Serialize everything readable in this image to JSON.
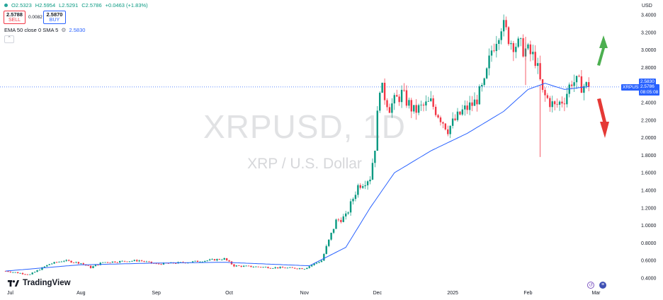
{
  "header": {
    "open": "O2.5323",
    "high": "H2.5954",
    "low": "L2.5291",
    "close": "C2.5786",
    "change": "+0.0463 (+1.83%)"
  },
  "trade": {
    "sell_price": "2.5788",
    "sell_label": "SELL",
    "spread": "0.0082",
    "buy_price": "2.5870",
    "buy_label": "BUY"
  },
  "indicator": {
    "label": "EMA 50 close 0 SMA 5",
    "value": "2.5830"
  },
  "watermark": {
    "symbol": "XRPUSD, 1D",
    "description": "XRP / U.S. Dollar"
  },
  "currency": "USD",
  "brand": "TradingView",
  "price_tags": {
    "symbol": "XRPUSD",
    "ema": "2.5830",
    "last": "2.5786",
    "countdown": "08:05:08"
  },
  "colors": {
    "up": "#089981",
    "down": "#f23645",
    "ema": "#2962ff",
    "arrow_up": "#4caf50",
    "arrow_down": "#e53935"
  },
  "chart_data": {
    "type": "candlestick",
    "title": "XRPUSD, 1D",
    "subtitle": "XRP / U.S. Dollar",
    "xlabel": "",
    "ylabel": "",
    "ylim": [
      0.35,
      3.45
    ],
    "y_ticks": [
      "3.4000",
      "3.2000",
      "3.0000",
      "2.8000",
      "2.6000",
      "2.4000",
      "2.2000",
      "2.0000",
      "1.8000",
      "1.6000",
      "1.4000",
      "1.2000",
      "1.0000",
      "0.8000",
      "0.6000",
      "0.4000"
    ],
    "y_tick_values": [
      3.4,
      3.2,
      3.0,
      2.8,
      2.6,
      2.4,
      2.2,
      2.0,
      1.8,
      1.6,
      1.4,
      1.2,
      1.0,
      0.8,
      0.6,
      0.4
    ],
    "x_ticks": [
      "Jul",
      "Aug",
      "Sep",
      "Oct",
      "Nov",
      "Dec",
      "2025",
      "Feb",
      "Mar"
    ],
    "x_tick_day_index": [
      0,
      31,
      62,
      92,
      123,
      153,
      184,
      215,
      243
    ],
    "days_total": 249,
    "grid": false,
    "last_price": 2.5786,
    "ema_last": 2.583,
    "anchors": [
      {
        "d": 0,
        "p": 0.48
      },
      {
        "d": 10,
        "p": 0.44
      },
      {
        "d": 18,
        "p": 0.56
      },
      {
        "d": 24,
        "p": 0.6
      },
      {
        "d": 31,
        "p": 0.57
      },
      {
        "d": 35,
        "p": 0.52
      },
      {
        "d": 40,
        "p": 0.58
      },
      {
        "d": 55,
        "p": 0.6
      },
      {
        "d": 62,
        "p": 0.56
      },
      {
        "d": 75,
        "p": 0.58
      },
      {
        "d": 90,
        "p": 0.62
      },
      {
        "d": 94,
        "p": 0.54
      },
      {
        "d": 110,
        "p": 0.52
      },
      {
        "d": 123,
        "p": 0.51
      },
      {
        "d": 130,
        "p": 0.6
      },
      {
        "d": 136,
        "p": 1.05
      },
      {
        "d": 140,
        "p": 1.1
      },
      {
        "d": 145,
        "p": 1.45
      },
      {
        "d": 150,
        "p": 1.55
      },
      {
        "d": 152,
        "p": 1.9
      },
      {
        "d": 154,
        "p": 2.6
      },
      {
        "d": 158,
        "p": 2.35
      },
      {
        "d": 163,
        "p": 2.5
      },
      {
        "d": 168,
        "p": 2.3
      },
      {
        "d": 175,
        "p": 2.4
      },
      {
        "d": 182,
        "p": 2.1
      },
      {
        "d": 188,
        "p": 2.3
      },
      {
        "d": 193,
        "p": 2.4
      },
      {
        "d": 197,
        "p": 2.6
      },
      {
        "d": 200,
        "p": 3.0
      },
      {
        "d": 204,
        "p": 3.3
      },
      {
        "d": 208,
        "p": 3.1
      },
      {
        "d": 214,
        "p": 3.0
      },
      {
        "d": 218,
        "p": 2.9
      },
      {
        "d": 221,
        "p": 2.5
      },
      {
        "d": 226,
        "p": 2.35
      },
      {
        "d": 230,
        "p": 2.45
      },
      {
        "d": 233,
        "p": 2.65
      },
      {
        "d": 237,
        "p": 2.6
      },
      {
        "d": 240,
        "p": 2.58
      }
    ],
    "ema_anchors": [
      {
        "d": 0,
        "p": 0.48
      },
      {
        "d": 30,
        "p": 0.55
      },
      {
        "d": 60,
        "p": 0.57
      },
      {
        "d": 90,
        "p": 0.58
      },
      {
        "d": 125,
        "p": 0.54
      },
      {
        "d": 140,
        "p": 0.75
      },
      {
        "d": 150,
        "p": 1.2
      },
      {
        "d": 160,
        "p": 1.6
      },
      {
        "d": 175,
        "p": 1.85
      },
      {
        "d": 190,
        "p": 2.05
      },
      {
        "d": 205,
        "p": 2.3
      },
      {
        "d": 215,
        "p": 2.55
      },
      {
        "d": 222,
        "p": 2.62
      },
      {
        "d": 230,
        "p": 2.55
      },
      {
        "d": 240,
        "p": 2.583
      }
    ],
    "spikes": [
      {
        "d": 220,
        "low": 1.78,
        "high": 2.6
      },
      {
        "d": 214,
        "low": 2.6,
        "high": 3.15
      }
    ],
    "annotations": [
      "up-arrow",
      "down-arrow"
    ]
  }
}
